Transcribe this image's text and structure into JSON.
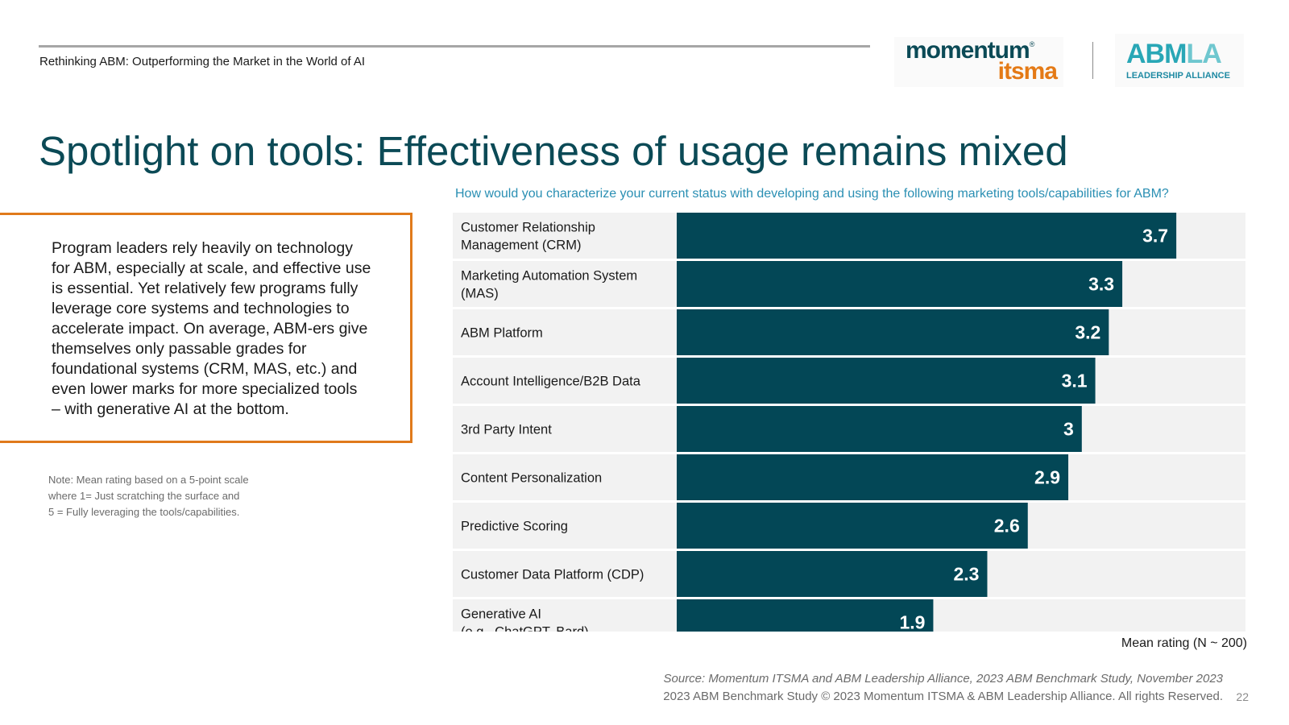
{
  "header": {
    "subtitle": "Rethinking ABM: Outperforming the Market in the World of AI",
    "logo_momentum_line1": "momentum",
    "logo_momentum_reg": "®",
    "logo_momentum_line2": "itsma",
    "logo_abmla_abm": "ABM",
    "logo_abmla_la": "LA",
    "logo_abmla_tagline": "LEADERSHIP ALLIANCE"
  },
  "title": "Spotlight on tools: Effectiveness of usage remains mixed",
  "callout": {
    "lines": [
      "Program leaders rely heavily on technology",
      "for ABM, especially at scale, and effective use",
      "is essential. Yet relatively few programs fully",
      "leverage core systems and technologies to",
      "accelerate impact. On average, ABM-ers give",
      "themselves only passable grades for",
      "foundational systems (CRM, MAS, etc.) and",
      "even lower marks for more specialized tools",
      "– with generative AI at the bottom."
    ]
  },
  "note": {
    "lines": [
      "Note: Mean rating based on a 5-point scale",
      "where 1= Just scratching the surface and",
      "5 = Fully leveraging the tools/capabilities."
    ]
  },
  "chart_data": {
    "type": "bar",
    "orientation": "horizontal",
    "title": "How would you characterize your current status with developing and using the following marketing tools/capabilities for ABM?",
    "xlabel": "Mean rating (N ~ 200)",
    "xlim": [
      0,
      5
    ],
    "categories": [
      [
        "Customer Relationship",
        "Management (CRM)"
      ],
      [
        "Marketing Automation System",
        "(MAS)"
      ],
      [
        "ABM Platform"
      ],
      [
        "Account Intelligence/B2B Data"
      ],
      [
        "3rd Party Intent"
      ],
      [
        "Content Personalization"
      ],
      [
        "Predictive Scoring"
      ],
      [
        "Customer Data Platform (CDP)"
      ],
      [
        "Generative AI",
        "(e.g., ChatGPT, Bard)"
      ]
    ],
    "values": [
      3.7,
      3.3,
      3.2,
      3.1,
      3,
      2.9,
      2.6,
      2.3,
      1.9
    ],
    "value_labels": [
      "3.7",
      "3.3",
      "3.2",
      "3.1",
      "3",
      "2.9",
      "2.6",
      "2.3",
      "1.9"
    ],
    "bar_color": "#034756",
    "track_color": "#f2f2f2",
    "label_color": "#ffffff"
  },
  "footer": {
    "source": "Source: Momentum ITSMA and ABM Leadership Alliance, 2023 ABM Benchmark Study, November 2023",
    "copyright": "2023 ABM Benchmark Study © 2023 Momentum ITSMA & ABM Leadership Alliance. All rights Reserved.",
    "page_number": "22"
  }
}
